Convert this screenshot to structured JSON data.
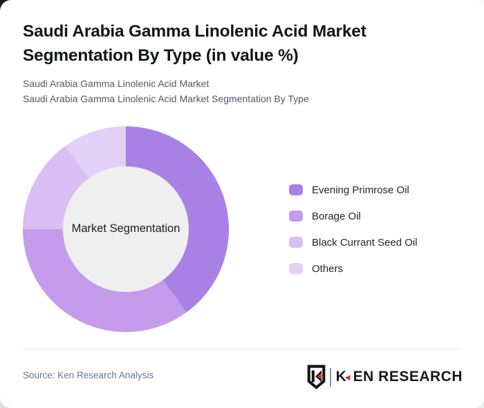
{
  "header": {
    "title": "Saudi Arabia Gamma Linolenic Acid Market Segmentation By Type (in value %)",
    "subtitle_line1": "Saudi Arabia Gamma Linolenic Acid Market",
    "subtitle_line2": "Saudi Arabia Gamma Linolenic Acid Market Segmentation By Type"
  },
  "chart_data": {
    "type": "pie",
    "variant": "donut",
    "title": "Saudi Arabia Gamma Linolenic Acid Market Segmentation By Type (in value %)",
    "center_label": "Market Segmentation",
    "categories": [
      "Evening Primrose Oil",
      "Borage Oil",
      "Black Currant Seed Oil",
      "Others"
    ],
    "values": [
      40,
      35,
      15,
      10
    ],
    "unit": "%",
    "colors": [
      "#a981e5",
      "#c49ceb",
      "#d9bff3",
      "#e2d0f6"
    ],
    "inner_circle_color": "#efefef",
    "start_angle_deg": 0,
    "direction": "clockwise",
    "legend_position": "right",
    "data_labels_shown": false
  },
  "footer": {
    "source": "Source: Ken Research Analysis",
    "logo": {
      "text": "KEN RESEARCH",
      "k": "K",
      "tri": "◄",
      "rest": "EN RESEARCH",
      "accent_color": "#c0392b",
      "icon": "ken-research-shield-icon"
    }
  }
}
